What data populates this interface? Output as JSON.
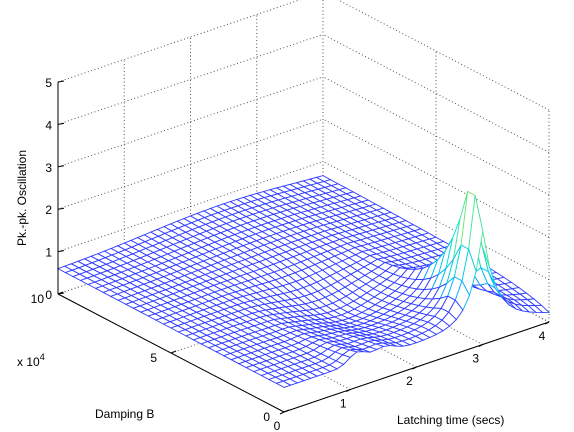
{
  "chart_data": {
    "type": "surface",
    "title": "",
    "xlabel": "Latching time (secs)",
    "ylabel": "Damping B",
    "zlabel": "Pk.-pk. Oscillation",
    "y_multiplier_label": "x 10",
    "y_multiplier_exponent": "4",
    "xlim": [
      0,
      4
    ],
    "ylim": [
      0,
      10
    ],
    "zlim": [
      0,
      5
    ],
    "x_ticks": [
      "0",
      "1",
      "2",
      "3",
      "4"
    ],
    "y_ticks": [
      "0",
      "5",
      "10"
    ],
    "z_ticks": [
      "0",
      "1",
      "2",
      "3",
      "4",
      "5"
    ],
    "grid": true,
    "peak": {
      "x": 3.0,
      "y": 0.5,
      "z": 3.9
    },
    "surface_description": "Mesh height z over latching time x (0-4 s) and damping y (0-10 x 10^4); near-flat plateau ~0.6-0.9, sharp peak ~3.9 near x=3, low damping"
  }
}
